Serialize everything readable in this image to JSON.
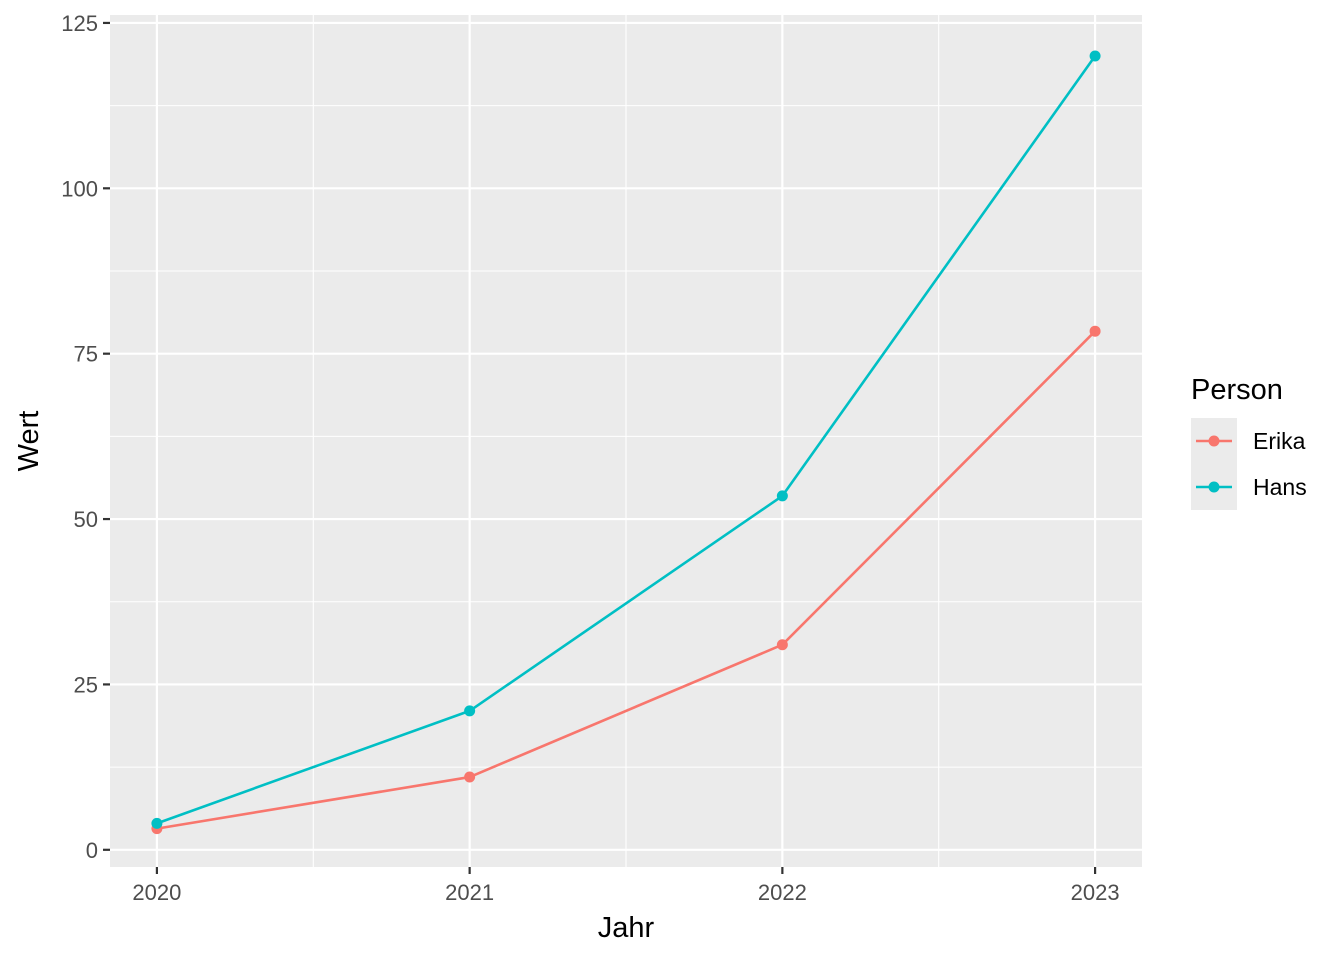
{
  "chart_data": {
    "type": "line",
    "xlabel": "Jahr",
    "ylabel": "Wert",
    "x": [
      2020,
      2021,
      2022,
      2023
    ],
    "xticks": [
      "2020",
      "2021",
      "2022",
      "2023"
    ],
    "yticks": [
      "0",
      "25",
      "50",
      "75",
      "100",
      "125"
    ],
    "ytick_values": [
      0,
      25,
      50,
      75,
      100,
      125
    ],
    "xlim": [
      2019.85,
      2023.15
    ],
    "ylim": [
      -2.6,
      126.2
    ],
    "grid": true,
    "legend": {
      "title": "Person",
      "placement": "right"
    },
    "series": [
      {
        "name": "Erika",
        "color": "#F8766D",
        "values": [
          3.2,
          11.0,
          31.0,
          78.4
        ]
      },
      {
        "name": "Hans",
        "color": "#00BFC4",
        "values": [
          4.0,
          21.0,
          53.5,
          120.0
        ]
      }
    ]
  },
  "colors": {
    "panel_background": "#EBEBEB",
    "grid_major": "#FFFFFF",
    "tick_mark": "#333333"
  }
}
